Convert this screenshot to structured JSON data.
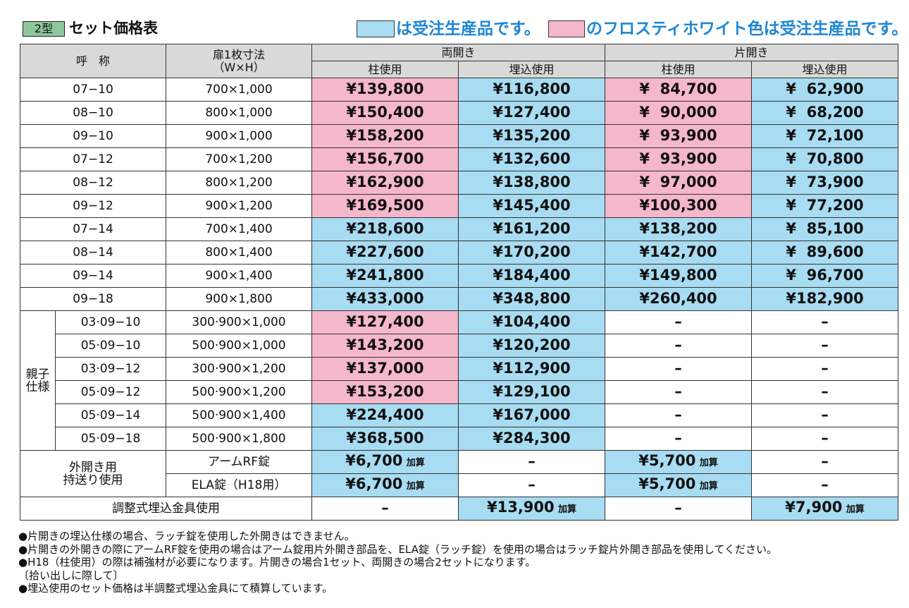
{
  "header": {
    "badge": "2型",
    "title": "セット価格表",
    "legend": [
      "は受注生産品です。",
      "のフロスティホワイト色は受注生産品です。"
    ]
  },
  "table": {
    "head": {
      "name": "呼　称",
      "size": [
        "扉1枚寸法",
        "（W×H）"
      ],
      "groups": [
        "両開き",
        "片開き"
      ],
      "subs": [
        "柱使用",
        "埋込使用",
        "柱使用",
        "埋込使用"
      ]
    },
    "standard": [
      [
        "07−10",
        "700×1,000",
        "¥139,800",
        "¥116,800",
        "¥  84,700",
        "¥  62,900"
      ],
      [
        "08−10",
        "800×1,000",
        "¥150,400",
        "¥127,400",
        "¥  90,000",
        "¥  68,200"
      ],
      [
        "09−10",
        "900×1,000",
        "¥158,200",
        "¥135,200",
        "¥  93,900",
        "¥  72,100"
      ],
      [
        "07−12",
        "700×1,200",
        "¥156,700",
        "¥132,600",
        "¥  93,900",
        "¥  70,800"
      ],
      [
        "08−12",
        "800×1,200",
        "¥162,900",
        "¥138,800",
        "¥  97,000",
        "¥  73,900"
      ],
      [
        "09−12",
        "900×1,200",
        "¥169,500",
        "¥145,400",
        "¥100,300",
        "¥  77,200"
      ],
      [
        "07−14",
        "700×1,400",
        "¥218,600",
        "¥161,200",
        "¥138,200",
        "¥  85,100"
      ],
      [
        "08−14",
        "800×1,400",
        "¥227,600",
        "¥170,200",
        "¥142,700",
        "¥  89,600"
      ],
      [
        "09−14",
        "900×1,400",
        "¥241,800",
        "¥184,400",
        "¥149,800",
        "¥  96,700"
      ],
      [
        "09−18",
        "900×1,800",
        "¥433,000",
        "¥348,800",
        "¥260,400",
        "¥182,900"
      ]
    ],
    "oyako": {
      "label": [
        "親子",
        "仕様"
      ],
      "rows": [
        [
          "03·09−10",
          "300·900×1,000",
          "¥127,400",
          "¥104,400",
          "–",
          "–"
        ],
        [
          "05·09−10",
          "500·900×1,000",
          "¥143,200",
          "¥120,200",
          "–",
          "–"
        ],
        [
          "03·09−12",
          "300·900×1,200",
          "¥137,000",
          "¥112,900",
          "–",
          "–"
        ],
        [
          "05·09−12",
          "500·900×1,200",
          "¥153,200",
          "¥129,100",
          "–",
          "–"
        ],
        [
          "05·09−14",
          "500·900×1,400",
          "¥224,400",
          "¥167,000",
          "–",
          "–"
        ],
        [
          "05·09−18",
          "500·900×1,800",
          "¥368,500",
          "¥284,300",
          "–",
          "–"
        ]
      ]
    },
    "soto": {
      "label": [
        "外開き用",
        "持送り使用"
      ],
      "rows": [
        [
          "アームRF錠",
          {
            "price": "¥6,700",
            "note": "加算"
          },
          "–",
          {
            "price": "¥5,700",
            "note": "加算"
          },
          "–"
        ],
        [
          "ELA錠（H18用）",
          {
            "price": "¥6,700",
            "note": "加算"
          },
          "–",
          {
            "price": "¥5,700",
            "note": "加算"
          },
          "–"
        ]
      ]
    },
    "adjust": [
      "調整式埋込金具使用",
      "–",
      {
        "price": "¥13,900",
        "note": "加算"
      },
      "–",
      {
        "price": "¥7,900",
        "note": "加算"
      }
    ]
  },
  "notes": [
    "●片開きの埋込仕様の場合、ラッチ錠を使用した外開きはできません。",
    "●片開きの外開きの際にアームRF錠を使用の場合はアーム錠用片外開き部品を、ELA錠（ラッチ錠）を使用の場合はラッチ錠片外開き部品を使用してください。",
    "●H18（柱使用）の際は補強材が必要になります。片開きの場合1セット、両開きの場合2セットになります。",
    "〔拾い出しに際して〕",
    "●埋込使用のセット価格は半調整式埋込金具にて積算しています。"
  ]
}
